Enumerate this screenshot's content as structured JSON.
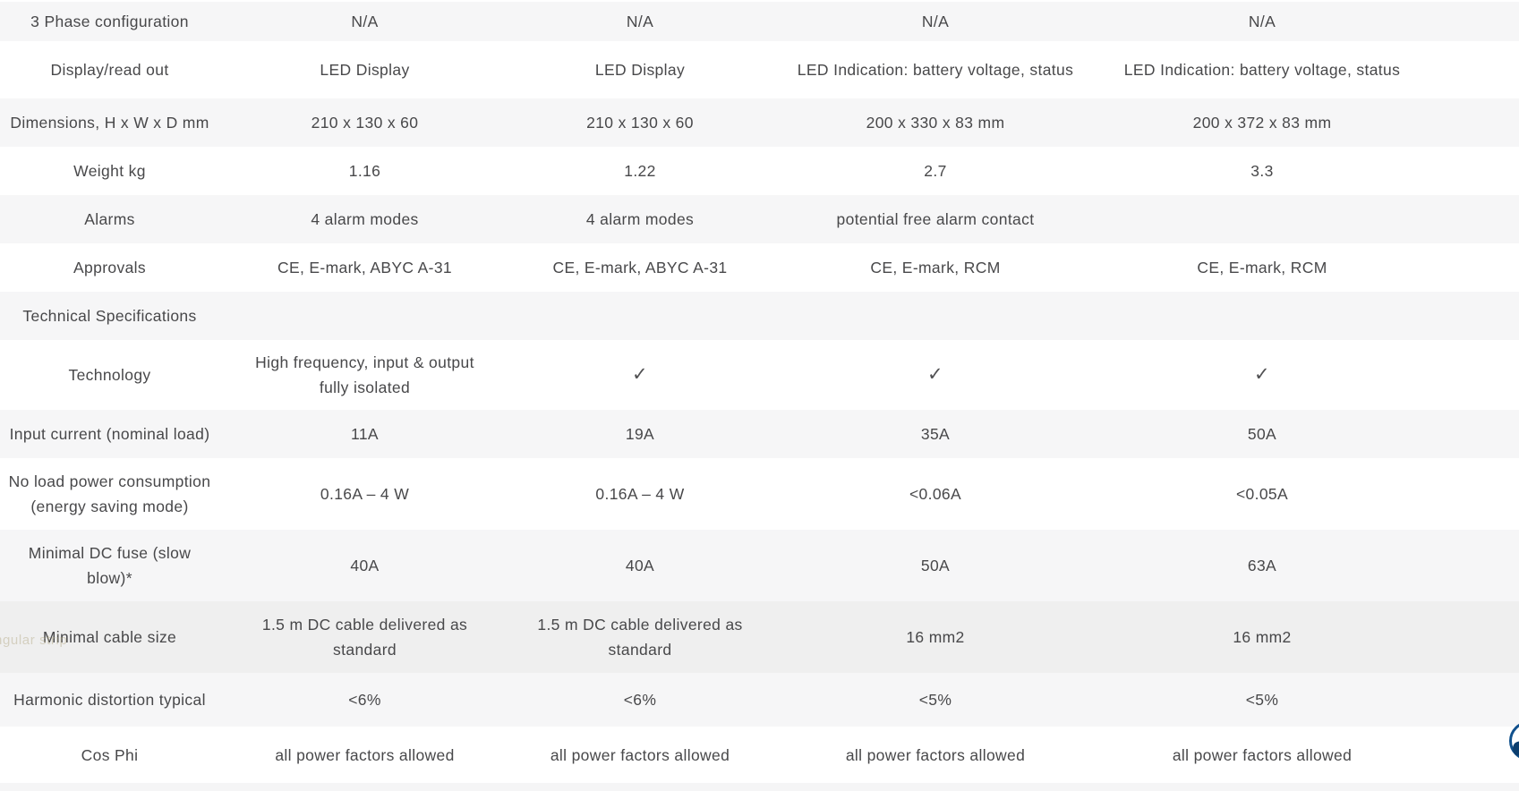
{
  "colors": {
    "background": "#ffffff",
    "stripe_row": "#f6f6f7",
    "hovered_row": "#efefef",
    "text": "#48484a",
    "bottom_partial_row": "#f5f5f6",
    "floating_button_ring": "#10508c",
    "floating_button_glyph": "#0c3e6e",
    "tooltip_fragment_text": "#b4aa86"
  },
  "table": {
    "columns": [
      "label",
      "product-1",
      "product-2",
      "product-3",
      "product-4"
    ],
    "rows": [
      {
        "label": "3 Phase configuration",
        "values": [
          "N/A",
          "N/A",
          "N/A",
          "N/A"
        ]
      },
      {
        "label": "Display/read out",
        "values": [
          "LED Display",
          "LED Display",
          "LED Indication: battery voltage, status",
          "LED Indication: battery voltage, status"
        ]
      },
      {
        "label": "Dimensions, H x W x D mm",
        "values": [
          "210 x 130 x 60",
          "210 x 130 x 60",
          "200 x 330 x 83 mm",
          "200 x 372 x 83 mm"
        ]
      },
      {
        "label": "Weight kg",
        "values": [
          "1.16",
          "1.22",
          "2.7",
          "3.3"
        ]
      },
      {
        "label": "Alarms",
        "values": [
          "4 alarm modes",
          "4 alarm modes",
          "potential free alarm contact",
          ""
        ]
      },
      {
        "label": "Approvals",
        "values": [
          "CE, E-mark, ABYC A-31",
          "CE, E-mark, ABYC A-31",
          "CE, E-mark, RCM",
          "CE, E-mark, RCM"
        ]
      },
      {
        "label": "Technical Specifications",
        "section": true,
        "values": [
          "",
          "",
          "",
          ""
        ]
      },
      {
        "label": "Technology",
        "values": [
          "High frequency, input & output\nfully isolated",
          "✓",
          "✓",
          "✓"
        ]
      },
      {
        "label": "Input current (nominal load)",
        "values": [
          "11A",
          "19A",
          "35A",
          "50A"
        ]
      },
      {
        "label": "No load power consumption\n(energy saving mode)",
        "values": [
          "0.16A – 4 W",
          "0.16A – 4 W",
          "<0.06A",
          "<0.05A"
        ]
      },
      {
        "label": "Minimal DC fuse (slow\nblow)*",
        "values": [
          "40A",
          "40A",
          "50A",
          "63A"
        ]
      },
      {
        "label": "Minimal cable size",
        "hovered": true,
        "values": [
          "1.5 m DC cable delivered as\nstandard",
          "1.5 m DC cable delivered as\nstandard",
          "16 mm2",
          "16 mm2"
        ]
      },
      {
        "label": "Harmonic distortion typical",
        "values": [
          "<6%",
          "<6%",
          "<5%",
          "<5%"
        ]
      },
      {
        "label": "Cos Phi",
        "values": [
          "all power factors allowed",
          "all power factors allowed",
          "all power factors allowed",
          "all power factors allowed"
        ]
      }
    ]
  },
  "artifacts": {
    "fading_tooltip_text": "ngular strip"
  }
}
